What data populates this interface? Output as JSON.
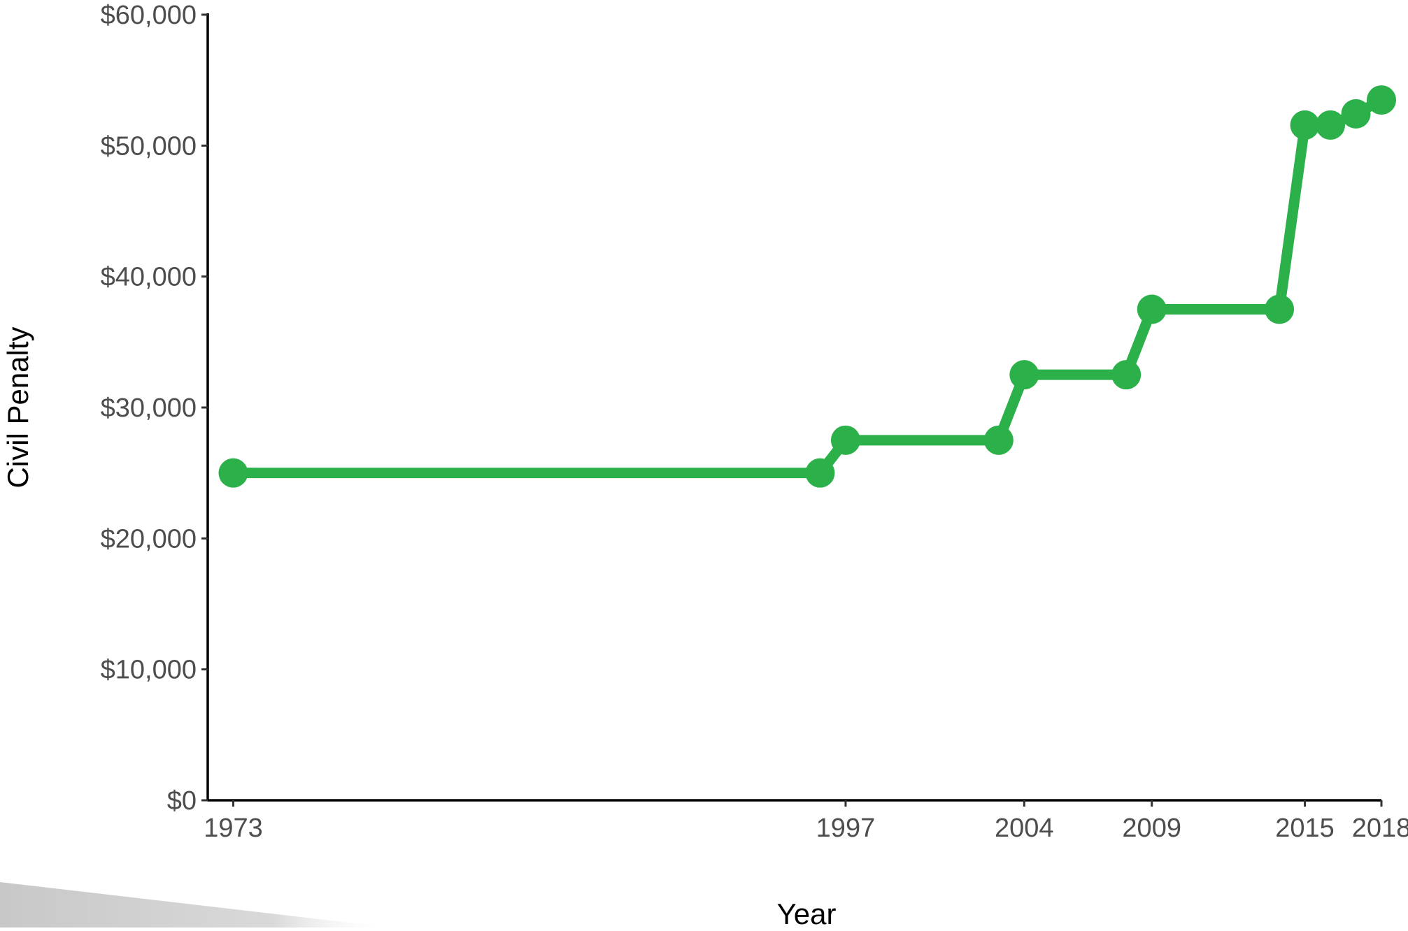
{
  "chart_data": {
    "type": "line",
    "title": "",
    "xlabel": "Year",
    "ylabel": "Civil Penalty",
    "xlim": [
      1972,
      2018
    ],
    "ylim": [
      0,
      60000
    ],
    "x_ticks": [
      1973,
      1997,
      2004,
      2009,
      2015,
      2018
    ],
    "y_ticks": [
      {
        "value": 0,
        "label": "$0"
      },
      {
        "value": 10000,
        "label": "$10,000"
      },
      {
        "value": 20000,
        "label": "$20,000"
      },
      {
        "value": 30000,
        "label": "$30,000"
      },
      {
        "value": 40000,
        "label": "$40,000"
      },
      {
        "value": 50000,
        "label": "$50,000"
      },
      {
        "value": 60000,
        "label": "$60,000"
      }
    ],
    "series": [
      {
        "color": "#2bb04a",
        "points": [
          {
            "x": 1973,
            "y": 25000
          },
          {
            "x": 1996,
            "y": 25000
          },
          {
            "x": 1997,
            "y": 27500
          },
          {
            "x": 2003,
            "y": 27500
          },
          {
            "x": 2004,
            "y": 32500
          },
          {
            "x": 2008,
            "y": 32500
          },
          {
            "x": 2009,
            "y": 37500
          },
          {
            "x": 2014,
            "y": 37500
          },
          {
            "x": 2015,
            "y": 51570
          },
          {
            "x": 2016,
            "y": 51570
          },
          {
            "x": 2017,
            "y": 52428
          },
          {
            "x": 2018,
            "y": 53484
          }
        ]
      }
    ],
    "grid": false,
    "legend": "none"
  }
}
